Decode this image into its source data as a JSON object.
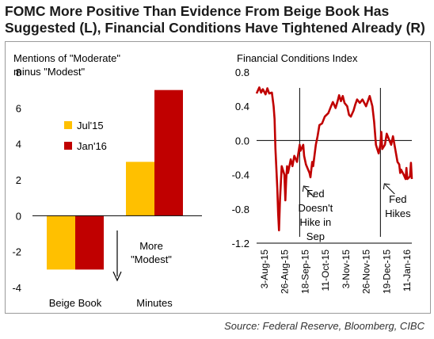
{
  "title_line1": "FOMC More Positive Than Evidence From Beige Book Has",
  "title_line2": "Suggested (L), Financial Conditions Have Tightened Already (R)",
  "source": "Source: Federal Reserve, Bloomberg, CIBC",
  "colors": {
    "jul15": "#FFC000",
    "jan16": "#C00000",
    "line": "#C00000",
    "axis": "#000000"
  },
  "chart_data": [
    {
      "type": "bar",
      "title": "Mentions of \"Moderate\" minus \"Modest\"",
      "title_line1": "Mentions of \"Moderate\"",
      "title_line2": "minus \"Modest\"",
      "categories": [
        "Beige Book",
        "Minutes"
      ],
      "series": [
        {
          "name": "Jul'15",
          "values": [
            -3,
            3
          ]
        },
        {
          "name": "Jan'16",
          "values": [
            -3,
            7
          ]
        }
      ],
      "ylim": [
        -4,
        8
      ],
      "yticks": [
        "-4",
        "-2",
        "0",
        "2",
        "4",
        "6",
        "8"
      ],
      "legend_position": "inside-left",
      "annotation_line1": "More",
      "annotation_line2": "\"Modest\""
    },
    {
      "type": "line",
      "title": "Financial Conditions Index",
      "ylim": [
        -1.2,
        0.8
      ],
      "yticks": [
        "-1.2",
        "-0.8",
        "-0.4",
        "0.0",
        "0.4",
        "0.8"
      ],
      "x_tick_labels": [
        "3-Aug-15",
        "26-Aug-15",
        "18-Sep-15",
        "11-Oct-15",
        "3-Nov-15",
        "26-Nov-15",
        "19-Dec-15",
        "11-Jan-16"
      ],
      "x_start": "2015-07-31",
      "x_end": "2016-01-20",
      "series": [
        {
          "name": "Financial Conditions Index",
          "points": [
            [
              "2015-07-31",
              0.55
            ],
            [
              "2015-08-03",
              0.62
            ],
            [
              "2015-08-05",
              0.56
            ],
            [
              "2015-08-07",
              0.6
            ],
            [
              "2015-08-10",
              0.54
            ],
            [
              "2015-08-12",
              0.61
            ],
            [
              "2015-08-14",
              0.55
            ],
            [
              "2015-08-17",
              0.56
            ],
            [
              "2015-08-19",
              0.4
            ],
            [
              "2015-08-20",
              0.25
            ],
            [
              "2015-08-21",
              -0.1
            ],
            [
              "2015-08-23",
              -0.55
            ],
            [
              "2015-08-24",
              -0.85
            ],
            [
              "2015-08-25",
              -1.05
            ],
            [
              "2015-08-26",
              -0.7
            ],
            [
              "2015-08-27",
              -0.5
            ],
            [
              "2015-08-28",
              -0.3
            ],
            [
              "2015-08-31",
              -0.4
            ],
            [
              "2015-09-01",
              -0.7
            ],
            [
              "2015-09-02",
              -0.45
            ],
            [
              "2015-09-03",
              -0.3
            ],
            [
              "2015-09-04",
              -0.38
            ],
            [
              "2015-09-07",
              -0.22
            ],
            [
              "2015-09-09",
              -0.3
            ],
            [
              "2015-09-11",
              -0.18
            ],
            [
              "2015-09-14",
              -0.25
            ],
            [
              "2015-09-16",
              -0.12
            ],
            [
              "2015-09-17",
              -0.05
            ],
            [
              "2015-09-18",
              -0.12
            ],
            [
              "2015-09-21",
              -0.05
            ],
            [
              "2015-09-22",
              -0.18
            ],
            [
              "2015-09-24",
              -0.28
            ],
            [
              "2015-09-28",
              -0.38
            ],
            [
              "2015-09-29",
              -0.43
            ],
            [
              "2015-10-01",
              -0.25
            ],
            [
              "2015-10-02",
              -0.3
            ],
            [
              "2015-10-05",
              -0.05
            ],
            [
              "2015-10-07",
              0.05
            ],
            [
              "2015-10-09",
              0.18
            ],
            [
              "2015-10-12",
              0.2
            ],
            [
              "2015-10-15",
              0.28
            ],
            [
              "2015-10-19",
              0.32
            ],
            [
              "2015-10-22",
              0.4
            ],
            [
              "2015-10-24",
              0.45
            ],
            [
              "2015-10-27",
              0.38
            ],
            [
              "2015-10-29",
              0.45
            ],
            [
              "2015-10-31",
              0.53
            ],
            [
              "2015-11-02",
              0.46
            ],
            [
              "2015-11-04",
              0.52
            ],
            [
              "2015-11-06",
              0.44
            ],
            [
              "2015-11-09",
              0.4
            ],
            [
              "2015-11-11",
              0.3
            ],
            [
              "2015-11-13",
              0.28
            ],
            [
              "2015-11-16",
              0.35
            ],
            [
              "2015-11-18",
              0.42
            ],
            [
              "2015-11-20",
              0.48
            ],
            [
              "2015-11-23",
              0.44
            ],
            [
              "2015-11-26",
              0.48
            ],
            [
              "2015-11-30",
              0.4
            ],
            [
              "2015-12-02",
              0.46
            ],
            [
              "2015-12-04",
              0.52
            ],
            [
              "2015-12-07",
              0.4
            ],
            [
              "2015-12-09",
              0.22
            ],
            [
              "2015-12-11",
              -0.05
            ],
            [
              "2015-12-14",
              -0.15
            ],
            [
              "2015-12-16",
              -0.05
            ],
            [
              "2015-12-17",
              0.1
            ],
            [
              "2015-12-18",
              -0.1
            ],
            [
              "2015-12-21",
              -0.05
            ],
            [
              "2015-12-23",
              0.08
            ],
            [
              "2015-12-28",
              -0.05
            ],
            [
              "2015-12-30",
              0.05
            ],
            [
              "2016-01-04",
              -0.25
            ],
            [
              "2016-01-06",
              -0.28
            ],
            [
              "2016-01-07",
              -0.38
            ],
            [
              "2016-01-08",
              -0.34
            ],
            [
              "2016-01-11",
              -0.4
            ],
            [
              "2016-01-13",
              -0.45
            ],
            [
              "2016-01-14",
              -0.32
            ],
            [
              "2016-01-15",
              -0.45
            ],
            [
              "2016-01-18",
              -0.42
            ],
            [
              "2016-01-19",
              -0.26
            ],
            [
              "2016-01-20",
              -0.45
            ]
          ]
        }
      ],
      "events": [
        {
          "date": "2015-09-17",
          "label_lines": [
            "Fed",
            "Doesn't",
            "Hike in",
            "Sep"
          ]
        },
        {
          "date": "2015-12-16",
          "label_lines": [
            "Fed",
            "Hikes"
          ]
        }
      ]
    }
  ]
}
